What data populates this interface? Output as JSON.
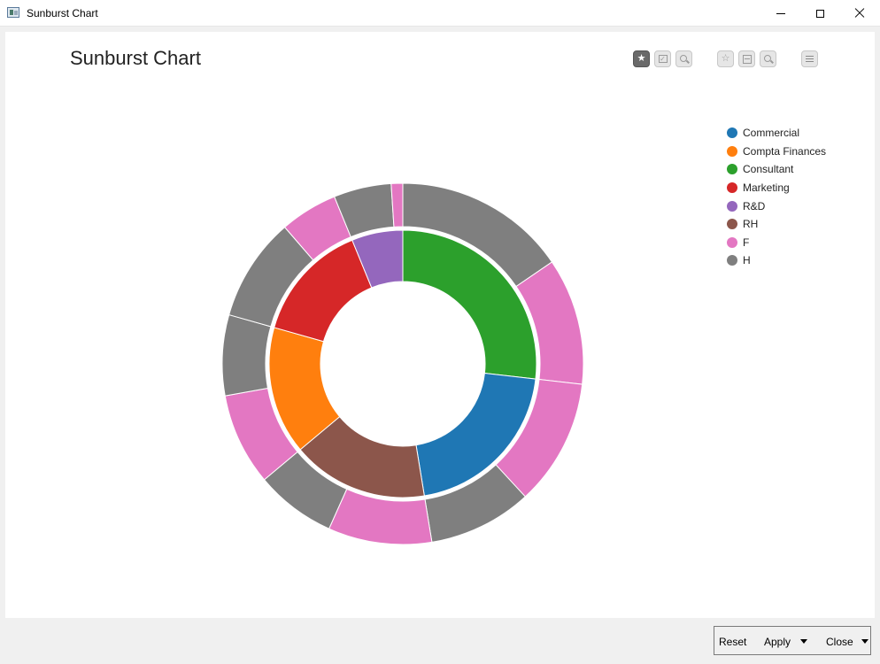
{
  "window": {
    "title": "Sunburst Chart"
  },
  "toolbar": {
    "groups": [
      [
        "star-icon",
        "checkbox-icon",
        "zoom-icon"
      ],
      [
        "star-outline-icon",
        "split-icon",
        "zoom-out-icon"
      ],
      [
        "menu-icon"
      ]
    ]
  },
  "chart_data": {
    "type": "sunburst",
    "title": "Sunburst Chart",
    "legend": [
      {
        "label": "Commercial",
        "color": "#1f77b4"
      },
      {
        "label": "Compta Finances",
        "color": "#ff7f0e"
      },
      {
        "label": "Consultant",
        "color": "#2ca02c"
      },
      {
        "label": "Marketing",
        "color": "#d62728"
      },
      {
        "label": "R&D",
        "color": "#9467bd"
      },
      {
        "label": "RH",
        "color": "#8c564b"
      },
      {
        "label": "F",
        "color": "#e377c2"
      },
      {
        "label": "H",
        "color": "#7f7f7f"
      }
    ],
    "legend_position": "top-right",
    "inner_ring": [
      {
        "name": "Consultant",
        "value": 26,
        "color": "#2ca02c"
      },
      {
        "name": "Commercial",
        "value": 20,
        "color": "#1f77b4"
      },
      {
        "name": "RH",
        "value": 16,
        "color": "#8c564b"
      },
      {
        "name": "Compta Finances",
        "value": 15,
        "color": "#ff7f0e"
      },
      {
        "name": "Marketing",
        "value": 14,
        "color": "#d62728"
      },
      {
        "name": "R&D",
        "value": 6,
        "color": "#9467bd"
      }
    ],
    "outer_ring": [
      {
        "parent": "Consultant",
        "name": "H",
        "value": 15,
        "color": "#7f7f7f"
      },
      {
        "parent": "Consultant",
        "name": "F",
        "value": 11,
        "color": "#e377c2"
      },
      {
        "parent": "Commercial",
        "name": "F",
        "value": 11,
        "color": "#e377c2"
      },
      {
        "parent": "Commercial",
        "name": "H",
        "value": 9,
        "color": "#7f7f7f"
      },
      {
        "parent": "RH",
        "name": "F",
        "value": 9,
        "color": "#e377c2"
      },
      {
        "parent": "RH",
        "name": "H",
        "value": 7,
        "color": "#7f7f7f"
      },
      {
        "parent": "Compta Finances",
        "name": "F",
        "value": 8,
        "color": "#e377c2"
      },
      {
        "parent": "Compta Finances",
        "name": "H",
        "value": 7,
        "color": "#7f7f7f"
      },
      {
        "parent": "Marketing",
        "name": "H",
        "value": 9,
        "color": "#7f7f7f"
      },
      {
        "parent": "Marketing",
        "name": "F",
        "value": 5,
        "color": "#e377c2"
      },
      {
        "parent": "R&D",
        "name": "H",
        "value": 5,
        "color": "#7f7f7f"
      },
      {
        "parent": "R&D",
        "name": "F",
        "value": 1,
        "color": "#e377c2"
      }
    ]
  },
  "buttons": {
    "reset": "Reset",
    "apply": "Apply",
    "close": "Close"
  }
}
